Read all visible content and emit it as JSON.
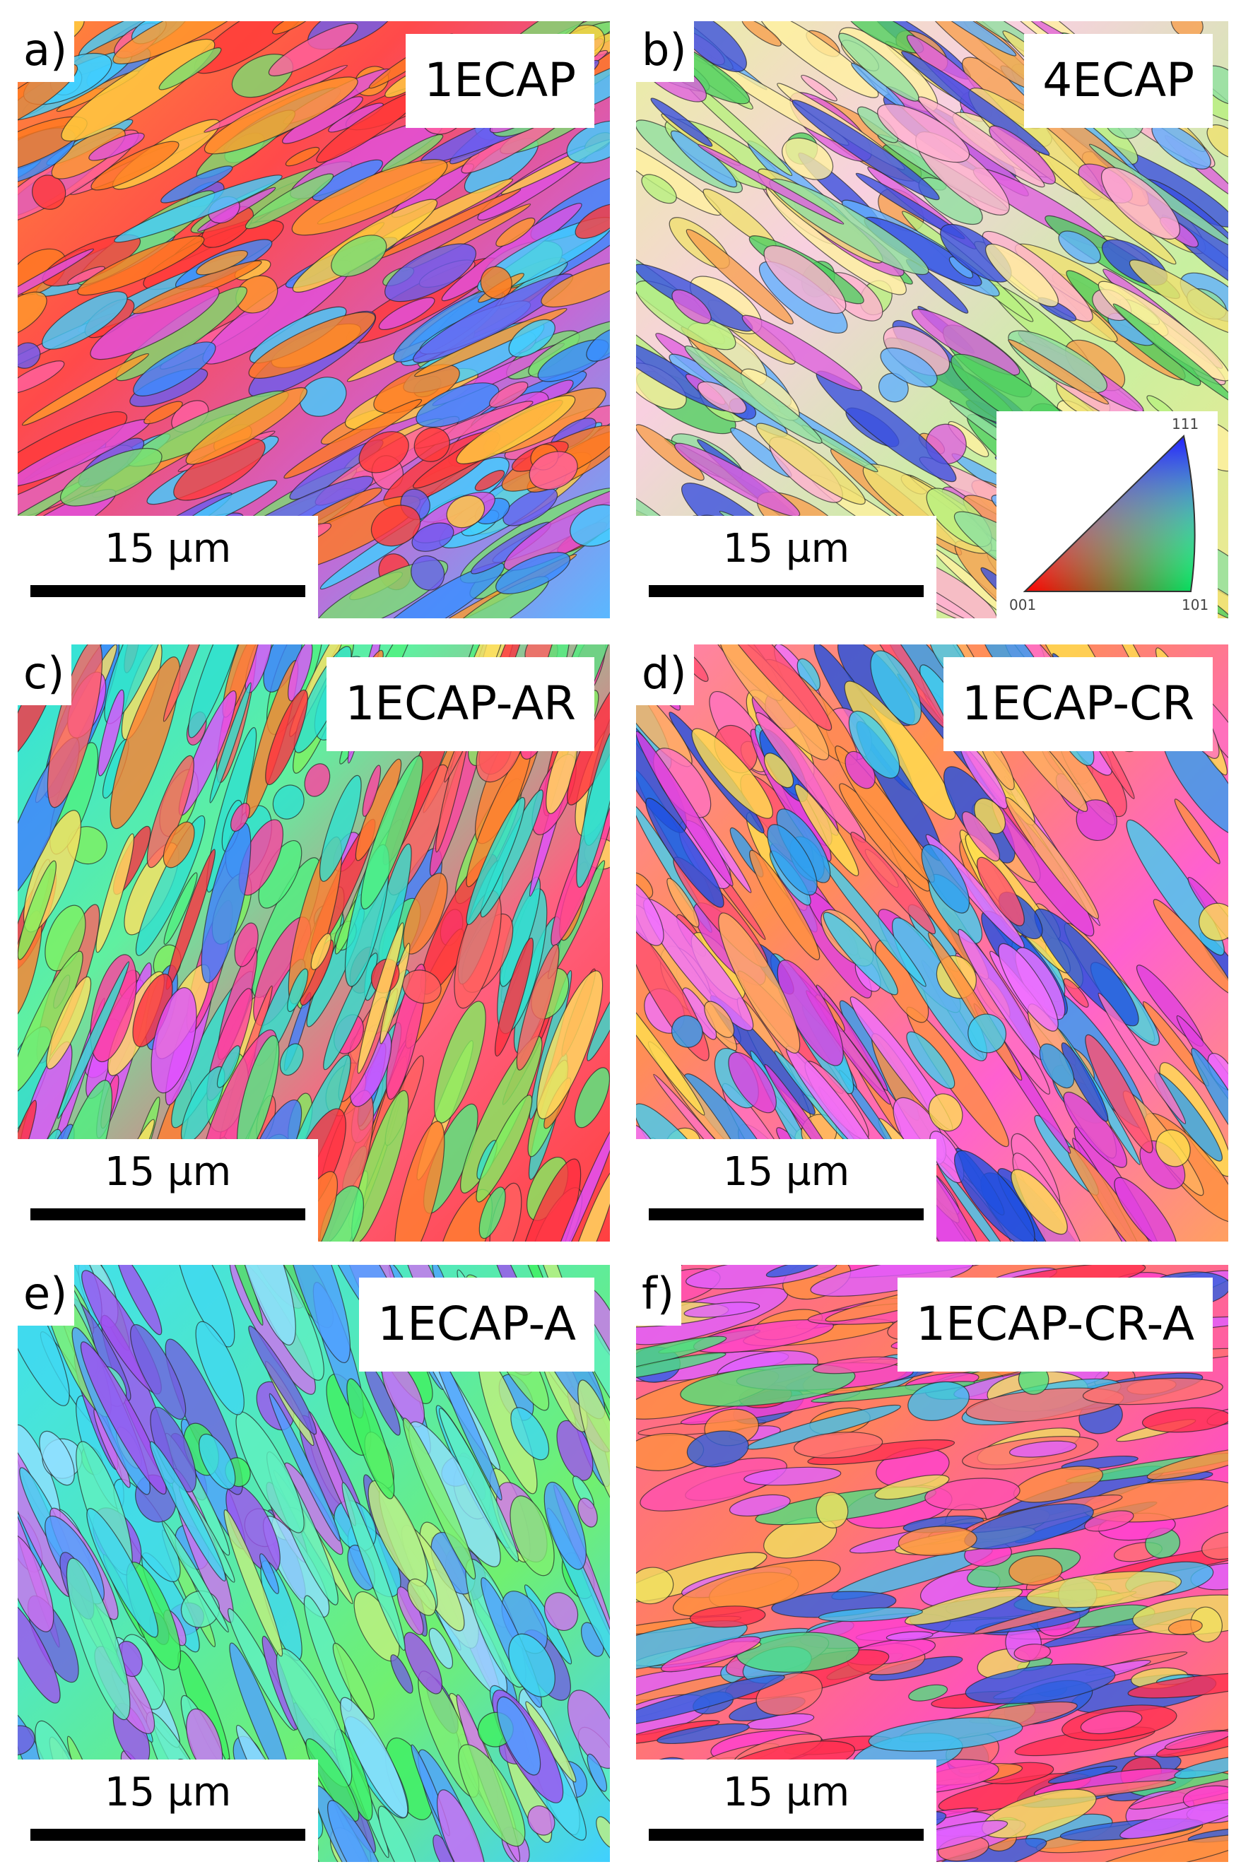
{
  "panels": [
    {
      "label": "a)",
      "title": "1ECAP",
      "scale_bar": "15 µm"
    },
    {
      "label": "b)",
      "title": "4ECAP",
      "scale_bar": "15 µm"
    },
    {
      "label": "c)",
      "title": "1ECAP-AR",
      "scale_bar": "15 µm"
    },
    {
      "label": "d)",
      "title": "1ECAP-CR",
      "scale_bar": "15 µm"
    },
    {
      "label": "e)",
      "title": "1ECAP-A",
      "scale_bar": "15 µm"
    },
    {
      "label": "f)",
      "title": "1ECAP-CR-A",
      "scale_bar": "15 µm"
    }
  ],
  "legend": {
    "labels": [
      "111",
      "001",
      "101"
    ]
  }
}
